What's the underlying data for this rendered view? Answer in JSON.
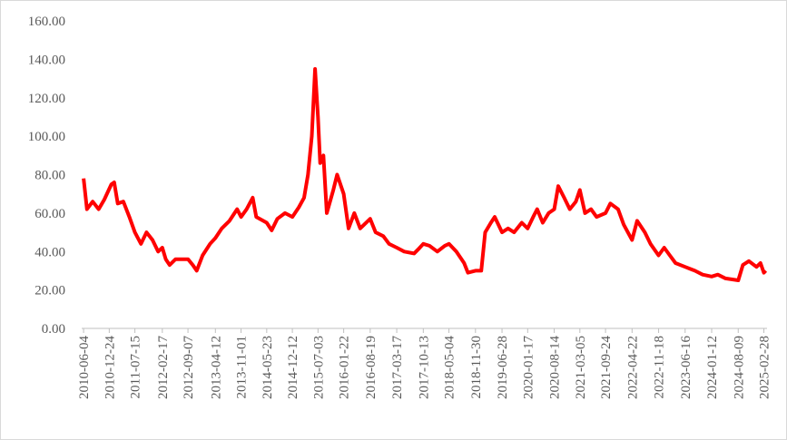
{
  "chart_data": {
    "type": "line",
    "x": [
      "2010-06-04",
      "2010-07-01",
      "2010-08-15",
      "2010-10-01",
      "2010-11-15",
      "2011-01-10",
      "2011-02-01",
      "2011-03-01",
      "2011-04-15",
      "2011-06-01",
      "2011-07-15",
      "2011-09-01",
      "2011-10-15",
      "2011-12-01",
      "2012-01-15",
      "2012-02-17",
      "2012-03-15",
      "2012-04-15",
      "2012-06-01",
      "2012-08-01",
      "2012-09-07",
      "2012-10-15",
      "2012-11-15",
      "2013-01-01",
      "2013-03-01",
      "2013-04-12",
      "2013-06-01",
      "2013-08-01",
      "2013-10-01",
      "2013-11-01",
      "2013-12-15",
      "2014-02-01",
      "2014-03-01",
      "2014-05-23",
      "2014-07-01",
      "2014-08-15",
      "2014-10-15",
      "2014-12-12",
      "2015-02-01",
      "2015-03-15",
      "2015-04-15",
      "2015-05-15",
      "2015-06-10",
      "2015-07-03",
      "2015-07-20",
      "2015-08-15",
      "2015-09-10",
      "2015-11-01",
      "2015-12-01",
      "2016-01-22",
      "2016-03-01",
      "2016-04-15",
      "2016-06-01",
      "2016-08-19",
      "2016-10-01",
      "2016-12-01",
      "2017-01-15",
      "2017-03-17",
      "2017-05-15",
      "2017-08-01",
      "2017-09-01",
      "2017-10-13",
      "2017-12-01",
      "2018-02-01",
      "2018-04-01",
      "2018-05-04",
      "2018-07-01",
      "2018-09-01",
      "2018-10-01",
      "2018-11-30",
      "2019-01-15",
      "2019-02-15",
      "2019-04-01",
      "2019-05-01",
      "2019-06-28",
      "2019-08-15",
      "2019-10-01",
      "2019-12-01",
      "2020-01-17",
      "2020-03-01",
      "2020-04-01",
      "2020-05-15",
      "2020-07-01",
      "2020-08-14",
      "2020-09-15",
      "2020-11-01",
      "2020-12-15",
      "2021-02-01",
      "2021-03-05",
      "2021-04-15",
      "2021-06-01",
      "2021-07-15",
      "2021-09-24",
      "2021-11-01",
      "2022-01-01",
      "2022-02-15",
      "2022-04-22",
      "2022-06-01",
      "2022-08-01",
      "2022-09-15",
      "2022-11-18",
      "2023-01-01",
      "2023-02-15",
      "2023-04-01",
      "2023-06-16",
      "2023-09-01",
      "2023-11-01",
      "2024-01-12",
      "2024-03-01",
      "2024-05-01",
      "2024-08-09",
      "2024-09-15",
      "2024-11-01",
      "2025-01-01",
      "2025-02-01",
      "2025-02-28",
      "2025-03-15"
    ],
    "values": [
      78,
      62,
      66,
      62,
      67,
      75,
      76,
      65,
      66,
      58,
      50,
      44,
      50,
      46,
      40,
      42,
      36,
      33,
      36,
      36,
      36,
      33,
      30,
      38,
      44,
      47,
      52,
      56,
      62,
      58,
      62,
      68,
      58,
      55,
      51,
      57,
      60,
      58,
      63,
      68,
      80,
      100,
      135,
      110,
      86,
      90,
      60,
      72,
      80,
      70,
      52,
      60,
      52,
      57,
      50,
      48,
      44,
      42,
      40,
      39,
      41,
      44,
      43,
      40,
      43,
      44,
      40,
      34,
      29,
      30,
      30,
      50,
      55,
      58,
      50,
      52,
      50,
      55,
      52,
      58,
      62,
      55,
      60,
      62,
      74,
      68,
      62,
      66,
      72,
      60,
      62,
      58,
      60,
      65,
      62,
      54,
      46,
      56,
      50,
      44,
      38,
      42,
      38,
      34,
      32,
      30,
      28,
      27,
      28,
      26,
      25,
      33,
      35,
      32,
      34,
      29,
      30
    ],
    "color": "#ff0000",
    "xlim": [
      "2010-05-20",
      "2025-03-25"
    ],
    "xticks": [
      "2010-06-04",
      "2010-12-24",
      "2011-07-15",
      "2012-02-17",
      "2012-09-07",
      "2013-04-12",
      "2013-11-01",
      "2014-05-23",
      "2014-12-12",
      "2015-07-03",
      "2016-01-22",
      "2016-08-19",
      "2017-03-17",
      "2017-10-13",
      "2018-05-04",
      "2018-11-30",
      "2019-06-28",
      "2020-01-17",
      "2020-08-14",
      "2021-03-05",
      "2021-09-24",
      "2022-04-22",
      "2022-11-18",
      "2023-06-16",
      "2024-01-12",
      "2024-08-09",
      "2025-02-28"
    ],
    "ylim": [
      0,
      160
    ],
    "yticks": [
      {
        "value": 0,
        "label": "0.00"
      },
      {
        "value": 20,
        "label": "20.00"
      },
      {
        "value": 40,
        "label": "40.00"
      },
      {
        "value": 60,
        "label": "60.00"
      },
      {
        "value": 80,
        "label": "80.00"
      },
      {
        "value": 100,
        "label": "100.00"
      },
      {
        "value": 120,
        "label": "120.00"
      },
      {
        "value": 140,
        "label": "140.00"
      },
      {
        "value": 160,
        "label": "160.00"
      }
    ],
    "grid": false
  }
}
